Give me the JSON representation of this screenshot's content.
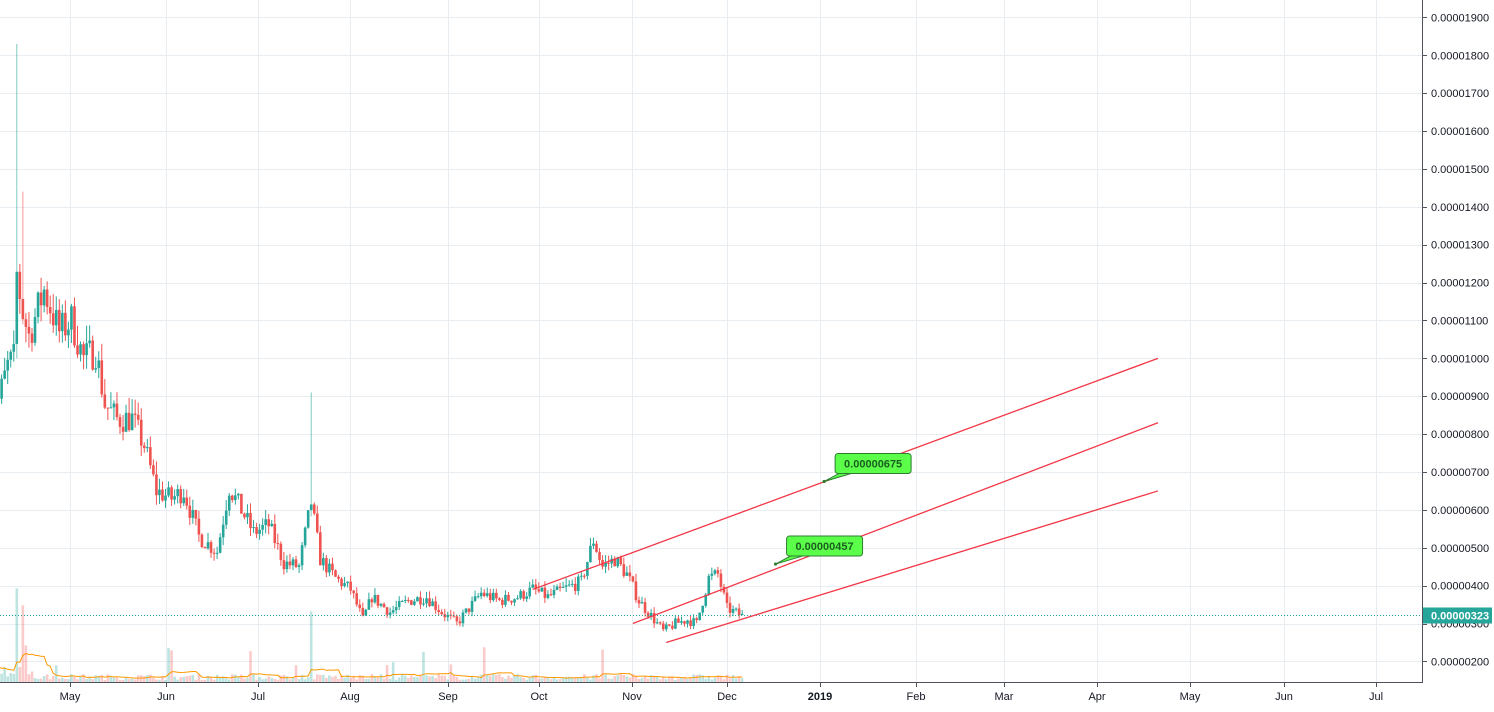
{
  "chart_data": {
    "type": "candlestick",
    "price_axis": {
      "min": 1.8e-06,
      "max": 1.93e-05,
      "tick_labels": [
        "0.00001900",
        "0.00001800",
        "0.00001700",
        "0.00001600",
        "0.00001500",
        "0.00001400",
        "0.00001300",
        "0.00001200",
        "0.00001100",
        "0.00001000",
        "0.00000900",
        "0.00000800",
        "0.00000700",
        "0.00000600",
        "0.00000500",
        "0.00000400",
        "0.00000300",
        "0.00000200"
      ]
    },
    "time_axis": {
      "labels": [
        {
          "text": "May",
          "bold": false
        },
        {
          "text": "Jun",
          "bold": false
        },
        {
          "text": "Jul",
          "bold": false
        },
        {
          "text": "Aug",
          "bold": false
        },
        {
          "text": "Sep",
          "bold": false
        },
        {
          "text": "Oct",
          "bold": false
        },
        {
          "text": "Nov",
          "bold": false
        },
        {
          "text": "Dec",
          "bold": false
        },
        {
          "text": "2019",
          "bold": true
        },
        {
          "text": "Feb",
          "bold": false
        },
        {
          "text": "Mar",
          "bold": false
        },
        {
          "text": "Apr",
          "bold": false
        },
        {
          "text": "May",
          "bold": false
        },
        {
          "text": "Jun",
          "bold": false
        },
        {
          "text": "Jul",
          "bold": false
        }
      ]
    },
    "close_path": [
      [
        "2018-04-15",
        8.3e-06
      ],
      [
        "2018-04-18",
        8.9e-06
      ],
      [
        "2018-04-21",
        9.8e-06
      ],
      [
        "2018-04-23",
        1e-05
      ],
      [
        "2018-04-24",
        1.22e-05
      ],
      [
        "2018-04-26",
        1.12e-05
      ],
      [
        "2018-04-28",
        1.06e-05
      ],
      [
        "2018-05-03",
        1.18e-05
      ],
      [
        "2018-05-08",
        1.07e-05
      ],
      [
        "2018-05-12",
        1.1e-05
      ],
      [
        "2018-05-16",
        1e-05
      ],
      [
        "2018-05-20",
        1.02e-05
      ],
      [
        "2018-05-23",
        8.8e-06
      ],
      [
        "2018-05-27",
        8.4e-06
      ],
      [
        "2018-06-01",
        8.4e-06
      ],
      [
        "2018-06-05",
        7.7e-06
      ],
      [
        "2018-06-09",
        6.5e-06
      ],
      [
        "2018-06-14",
        6.3e-06
      ],
      [
        "2018-06-18",
        6.5e-06
      ],
      [
        "2018-06-23",
        5.3e-06
      ],
      [
        "2018-06-29",
        4.9e-06
      ],
      [
        "2018-07-03",
        6.6e-06
      ],
      [
        "2018-07-07",
        6e-06
      ],
      [
        "2018-07-11",
        5.4e-06
      ],
      [
        "2018-07-16",
        5.6e-06
      ],
      [
        "2018-07-21",
        4.6e-06
      ],
      [
        "2018-07-26",
        4.5e-06
      ],
      [
        "2018-07-30",
        6.2e-06
      ],
      [
        "2018-08-02",
        4.7e-06
      ],
      [
        "2018-08-07",
        4.2e-06
      ],
      [
        "2018-08-12",
        3.9e-06
      ],
      [
        "2018-08-16",
        3.1e-06
      ],
      [
        "2018-08-19",
        3.7e-06
      ],
      [
        "2018-08-25",
        3.3e-06
      ],
      [
        "2018-08-31",
        3.6e-06
      ],
      [
        "2018-09-06",
        3.7e-06
      ],
      [
        "2018-09-11",
        3.3e-06
      ],
      [
        "2018-09-16",
        3e-06
      ],
      [
        "2018-09-20",
        3.4e-06
      ],
      [
        "2018-09-24",
        3.8e-06
      ],
      [
        "2018-09-30",
        3.6e-06
      ],
      [
        "2018-10-06",
        3.7e-06
      ],
      [
        "2018-10-11",
        3.9e-06
      ],
      [
        "2018-10-16",
        3.7e-06
      ],
      [
        "2018-10-21",
        3.9e-06
      ],
      [
        "2018-10-27",
        4.1e-06
      ],
      [
        "2018-10-31",
        5.2e-06
      ],
      [
        "2018-11-03",
        4.5e-06
      ],
      [
        "2018-11-07",
        4.7e-06
      ],
      [
        "2018-11-11",
        4.3e-06
      ],
      [
        "2018-11-15",
        3.6e-06
      ],
      [
        "2018-11-19",
        3.2e-06
      ],
      [
        "2018-11-23",
        2.8e-06
      ],
      [
        "2018-11-27",
        3e-06
      ],
      [
        "2018-12-01",
        3.1e-06
      ],
      [
        "2018-12-04",
        3e-06
      ],
      [
        "2018-12-08",
        4.2e-06
      ],
      [
        "2018-12-11",
        4.3e-06
      ],
      [
        "2018-12-14",
        3.4e-06
      ],
      [
        "2018-12-19",
        3.2e-06
      ]
    ],
    "spikes": [
      {
        "date": "2018-04-24",
        "high": 1.83e-05
      },
      {
        "date": "2018-04-26",
        "high": 1.44e-05
      },
      {
        "date": "2018-07-30",
        "high": 9.1e-06
      }
    ],
    "current_price": {
      "value": 3.23e-06,
      "label": "0.00000323",
      "color": "#26a69a"
    },
    "trend_lines": [
      {
        "from": [
          "2018-10-11",
          3.9e-06
        ],
        "to": [
          "2019-05-05",
          1e-05
        ]
      },
      {
        "from": [
          "2018-11-13",
          3e-06
        ],
        "to": [
          "2019-05-05",
          8.3e-06
        ]
      },
      {
        "from": [
          "2018-11-24",
          2.5e-06
        ],
        "to": [
          "2019-05-05",
          6.5e-06
        ]
      }
    ],
    "callouts": [
      {
        "label": "0.00000675",
        "anchor": [
          "2019-01-15",
          6.75e-06
        ]
      },
      {
        "label": "0.00000457",
        "anchor": [
          "2018-12-30",
          4.57e-06
        ]
      }
    ],
    "colors": {
      "up": "#26a69a",
      "down": "#ef5350",
      "trend": "#f23645",
      "callout_fill": "#5bff4a",
      "ma": "#ff9800",
      "grid": "#e8edf2"
    }
  }
}
